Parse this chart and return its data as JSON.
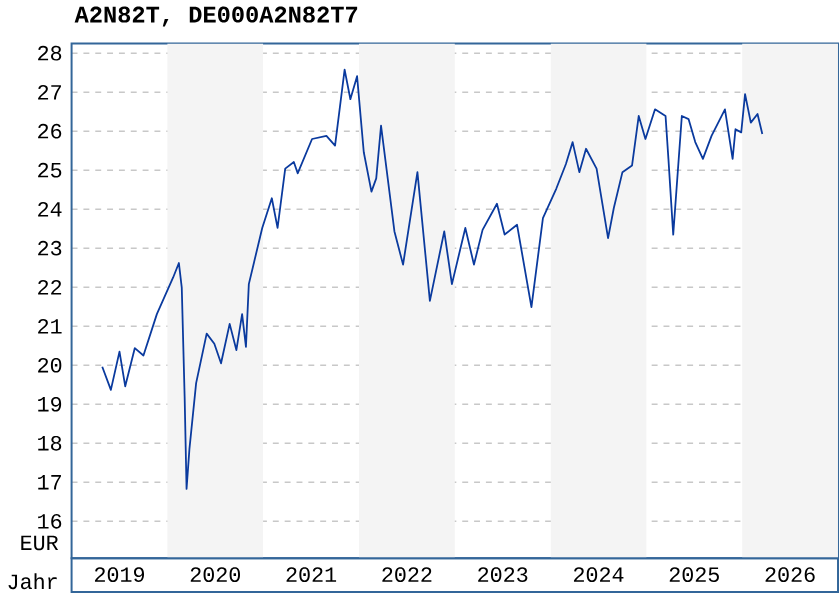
{
  "chart_data": {
    "type": "line",
    "title": "A2N82T, DE000A2N82T7",
    "xlabel": "Jahr",
    "ylabel": "EUR",
    "xlim": [
      2019,
      2027
    ],
    "ylim": [
      15.05,
      28.25
    ],
    "xticks": [
      {
        "value": 2019.5,
        "label": "2019"
      },
      {
        "value": 2020.5,
        "label": "2020"
      },
      {
        "value": 2021.5,
        "label": "2021"
      },
      {
        "value": 2022.5,
        "label": "2022"
      },
      {
        "value": 2023.5,
        "label": "2023"
      },
      {
        "value": 2024.5,
        "label": "2024"
      },
      {
        "value": 2025.5,
        "label": "2025"
      },
      {
        "value": 2026.5,
        "label": "2026"
      }
    ],
    "yticks": [
      16,
      17,
      18,
      19,
      20,
      21,
      22,
      23,
      24,
      25,
      26,
      27,
      28
    ],
    "grid": "y",
    "line_style": "solid",
    "marker": "none",
    "bands": [
      {
        "axis": "x",
        "from": 2020,
        "to": 2021,
        "color": "#f4f4f4"
      },
      {
        "axis": "x",
        "from": 2022,
        "to": 2023,
        "color": "#f4f4f4"
      },
      {
        "axis": "x",
        "from": 2024,
        "to": 2025,
        "color": "#f4f4f4"
      },
      {
        "axis": "x",
        "from": 2026,
        "to": 2027,
        "color": "#f4f4f4"
      }
    ],
    "series": [
      {
        "color": "#0a3a9e",
        "x": [
          2019.32,
          2019.41,
          2019.5,
          2019.56,
          2019.66,
          2019.75,
          2019.89,
          2020.06,
          2020.12,
          2020.15,
          2020.18,
          2020.2,
          2020.23,
          2020.3,
          2020.41,
          2020.49,
          2020.56,
          2020.65,
          2020.72,
          2020.78,
          2020.82,
          2020.85,
          2020.99,
          2021.09,
          2021.15,
          2021.23,
          2021.32,
          2021.36,
          2021.51,
          2021.66,
          2021.75,
          2021.85,
          2021.91,
          2021.98,
          2022.05,
          2022.13,
          2022.18,
          2022.23,
          2022.37,
          2022.46,
          2022.61,
          2022.74,
          2022.89,
          2022.97,
          2023.11,
          2023.2,
          2023.29,
          2023.44,
          2023.52,
          2023.65,
          2023.8,
          2023.92,
          2024.06,
          2024.16,
          2024.23,
          2024.3,
          2024.37,
          2024.48,
          2024.6,
          2024.66,
          2024.75,
          2024.85,
          2024.92,
          2024.99,
          2025.09,
          2025.2,
          2025.23,
          2025.28,
          2025.37,
          2025.44,
          2025.51,
          2025.59,
          2025.68,
          2025.82,
          2025.9,
          2025.93,
          2025.99,
          2026.03,
          2026.09,
          2026.16,
          2026.21
        ],
        "values": [
          19.96,
          19.37,
          20.35,
          19.46,
          20.44,
          20.25,
          21.31,
          22.25,
          22.62,
          21.99,
          19.2,
          16.83,
          17.85,
          19.54,
          20.81,
          20.55,
          20.05,
          21.06,
          20.39,
          21.31,
          20.47,
          22.08,
          23.52,
          24.28,
          23.52,
          25.04,
          25.21,
          24.92,
          25.8,
          25.88,
          25.63,
          27.58,
          26.82,
          27.41,
          25.46,
          24.45,
          24.79,
          26.14,
          23.43,
          22.58,
          24.95,
          21.65,
          23.43,
          22.08,
          23.52,
          22.58,
          23.47,
          24.14,
          23.35,
          23.6,
          21.49,
          23.77,
          24.53,
          25.16,
          25.72,
          24.95,
          25.55,
          25.04,
          23.26,
          24.03,
          24.95,
          25.12,
          26.39,
          25.8,
          26.56,
          26.39,
          25.29,
          23.35,
          26.39,
          26.31,
          25.72,
          25.29,
          25.88,
          26.56,
          25.29,
          26.05,
          25.97,
          26.95,
          26.22,
          26.44,
          25.93
        ]
      }
    ]
  }
}
